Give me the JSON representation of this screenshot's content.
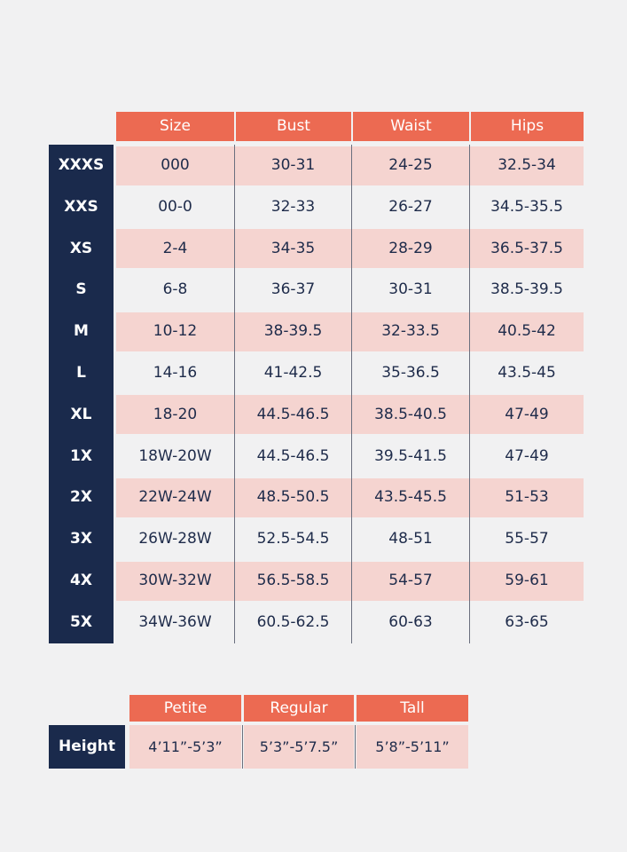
{
  "size_chart": {
    "columns": [
      "Size",
      "Bust",
      "Waist",
      "Hips"
    ],
    "rows": [
      {
        "label": "XXXS",
        "size": "000",
        "bust": "30-31",
        "waist": "24-25",
        "hips": "32.5-34"
      },
      {
        "label": "XXS",
        "size": "00-0",
        "bust": "32-33",
        "waist": "26-27",
        "hips": "34.5-35.5"
      },
      {
        "label": "XS",
        "size": "2-4",
        "bust": "34-35",
        "waist": "28-29",
        "hips": "36.5-37.5"
      },
      {
        "label": "S",
        "size": "6-8",
        "bust": "36-37",
        "waist": "30-31",
        "hips": "38.5-39.5"
      },
      {
        "label": "M",
        "size": "10-12",
        "bust": "38-39.5",
        "waist": "32-33.5",
        "hips": "40.5-42"
      },
      {
        "label": "L",
        "size": "14-16",
        "bust": "41-42.5",
        "waist": "35-36.5",
        "hips": "43.5-45"
      },
      {
        "label": "XL",
        "size": "18-20",
        "bust": "44.5-46.5",
        "waist": "38.5-40.5",
        "hips": "47-49"
      },
      {
        "label": "1X",
        "size": "18W-20W",
        "bust": "44.5-46.5",
        "waist": "39.5-41.5",
        "hips": "47-49"
      },
      {
        "label": "2X",
        "size": "22W-24W",
        "bust": "48.5-50.5",
        "waist": "43.5-45.5",
        "hips": "51-53"
      },
      {
        "label": "3X",
        "size": "26W-28W",
        "bust": "52.5-54.5",
        "waist": "48-51",
        "hips": "55-57"
      },
      {
        "label": "4X",
        "size": "30W-32W",
        "bust": "56.5-58.5",
        "waist": "54-57",
        "hips": "59-61"
      },
      {
        "label": "5X",
        "size": "34W-36W",
        "bust": "60.5-62.5",
        "waist": "60-63",
        "hips": "63-65"
      }
    ]
  },
  "height_chart": {
    "label": "Height",
    "columns": [
      "Petite",
      "Regular",
      "Tall"
    ],
    "values": [
      "4’11”-5’3”",
      "5’3”-5’7.5”",
      "5’8”-5’11”"
    ]
  },
  "colors": {
    "header": "#ec6a52",
    "band": "#f5d4d0",
    "navy": "#1a2a4c"
  }
}
